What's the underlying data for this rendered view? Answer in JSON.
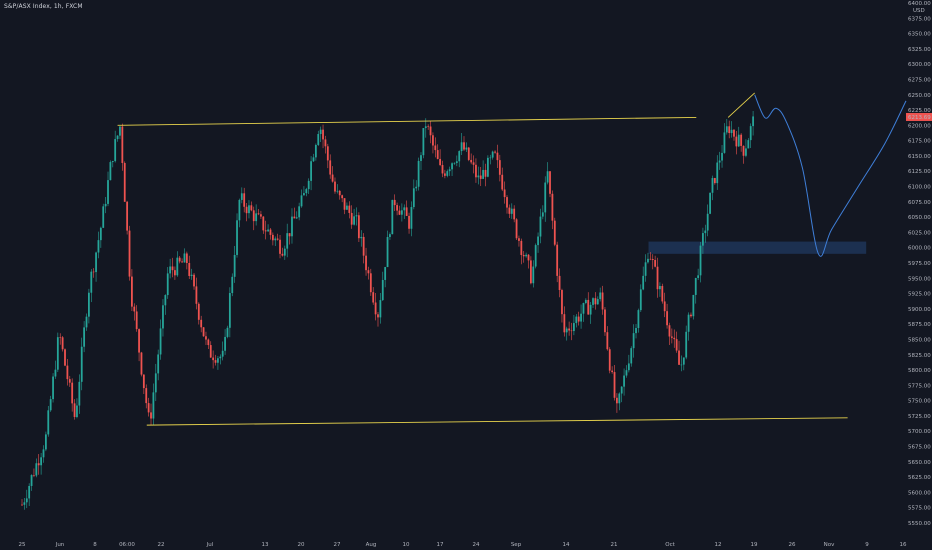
{
  "header": {
    "symbol_title": "S&P/ASX Index, 1h, FXCM"
  },
  "colors": {
    "background": "#131722",
    "up": "#26a69a",
    "down": "#ef5350",
    "channel_line": "#e8d44d",
    "projection": "#3f7fd9",
    "zone_fill": "#1c3253",
    "price_tag": "#ef5350",
    "axis_text": "#b2b5be"
  },
  "chart_data": {
    "type": "candlestick",
    "title": "S&P/ASX Index, 1h, FXCM",
    "ylabel": "USD",
    "ylim": [
      5550,
      6400
    ],
    "y_ticks": [
      "6400.00",
      "6375.00",
      "6350.00",
      "6325.00",
      "6300.00",
      "6275.00",
      "6250.00",
      "6225.00",
      "6200.00",
      "6175.00",
      "6150.00",
      "6125.00",
      "6100.00",
      "6075.00",
      "6050.00",
      "6025.00",
      "6000.00",
      "5975.00",
      "5950.00",
      "5925.00",
      "5900.00",
      "5875.00",
      "5850.00",
      "5825.00",
      "5800.00",
      "5775.00",
      "5750.00",
      "5725.00",
      "5700.00",
      "5675.00",
      "5650.00",
      "5625.00",
      "5600.00",
      "5575.00",
      "5550.00"
    ],
    "x_ticks": [
      "25",
      "Jun",
      "8",
      "06:00",
      "22",
      "Jul",
      "13",
      "20",
      "27",
      "Aug",
      "10",
      "17",
      "24",
      "Sep",
      "14",
      "21",
      "Oct",
      "12",
      "19",
      "26",
      "Nov",
      "9",
      "16"
    ],
    "last_price": "6213.69",
    "price_path": [
      {
        "t": 0.0,
        "p": 5580
      },
      {
        "t": 9,
        "p": 5690
      },
      {
        "t": 14,
        "p": 5860
      },
      {
        "t": 20,
        "p": 5720
      },
      {
        "t": 25,
        "p": 5930
      },
      {
        "t": 30,
        "p": 6040
      },
      {
        "t": 34,
        "p": 6150
      },
      {
        "t": 37,
        "p": 6200
      },
      {
        "t": 41,
        "p": 5930
      },
      {
        "t": 48,
        "p": 5710
      },
      {
        "t": 55,
        "p": 5960
      },
      {
        "t": 62,
        "p": 5980
      },
      {
        "t": 70,
        "p": 5830
      },
      {
        "t": 76,
        "p": 5820
      },
      {
        "t": 82,
        "p": 6080
      },
      {
        "t": 90,
        "p": 6040
      },
      {
        "t": 98,
        "p": 6000
      },
      {
        "t": 106,
        "p": 6080
      },
      {
        "t": 112,
        "p": 6205
      },
      {
        "t": 118,
        "p": 6090
      },
      {
        "t": 126,
        "p": 6040
      },
      {
        "t": 134,
        "p": 5890
      },
      {
        "t": 140,
        "p": 6080
      },
      {
        "t": 146,
        "p": 6040
      },
      {
        "t": 152,
        "p": 6205
      },
      {
        "t": 158,
        "p": 6120
      },
      {
        "t": 166,
        "p": 6165
      },
      {
        "t": 172,
        "p": 6110
      },
      {
        "t": 178,
        "p": 6150
      },
      {
        "t": 186,
        "p": 6030
      },
      {
        "t": 192,
        "p": 5950
      },
      {
        "t": 198,
        "p": 6120
      },
      {
        "t": 204,
        "p": 5860
      },
      {
        "t": 212,
        "p": 5900
      },
      {
        "t": 218,
        "p": 5920
      },
      {
        "t": 224,
        "p": 5730
      },
      {
        "t": 230,
        "p": 5850
      },
      {
        "t": 236,
        "p": 6000
      },
      {
        "t": 242,
        "p": 5900
      },
      {
        "t": 248,
        "p": 5800
      },
      {
        "t": 254,
        "p": 5950
      },
      {
        "t": 260,
        "p": 6100
      },
      {
        "t": 266,
        "p": 6200
      },
      {
        "t": 272,
        "p": 6160
      },
      {
        "t": 276,
        "p": 6214
      }
    ],
    "channel_top": [
      {
        "t": 36,
        "p": 6200
      },
      {
        "t": 254,
        "p": 6213
      }
    ],
    "channel_bottom": [
      {
        "t": 47,
        "p": 5710
      },
      {
        "t": 311,
        "p": 5722
      }
    ],
    "small_trend": [
      {
        "t": 266,
        "p": 6213
      },
      {
        "t": 276,
        "p": 6253
      }
    ],
    "support_zone": {
      "t0": 236,
      "t1": 318,
      "p0": 5990,
      "p1": 6010
    },
    "projection": [
      {
        "t": 276,
        "p": 6250
      },
      {
        "t": 280,
        "p": 6212
      },
      {
        "t": 284,
        "p": 6228
      },
      {
        "t": 288,
        "p": 6205
      },
      {
        "t": 294,
        "p": 6130
      },
      {
        "t": 300,
        "p": 5990
      },
      {
        "t": 305,
        "p": 6030
      },
      {
        "t": 315,
        "p": 6100
      },
      {
        "t": 325,
        "p": 6170
      },
      {
        "t": 333,
        "p": 6240
      }
    ]
  }
}
